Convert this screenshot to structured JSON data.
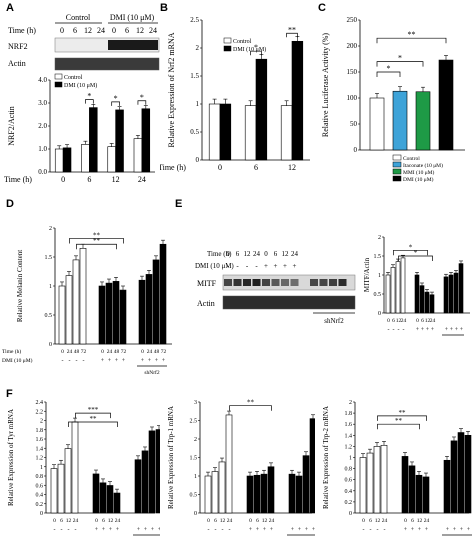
{
  "panel_labels": [
    "A",
    "B",
    "C",
    "D",
    "E",
    "F"
  ],
  "panel_a": {
    "group_labels": [
      "Control",
      "DMI (10 μM)"
    ],
    "time_label": "Time (h)",
    "times": [
      "0",
      "6",
      "12",
      "24",
      "0",
      "6",
      "12",
      "24"
    ],
    "blot_labels": [
      "NRF2",
      "Actin"
    ]
  },
  "panel_e": {
    "row_labels": [
      "Time (h)",
      "DMI (10 μM)"
    ],
    "times": [
      "0",
      "6",
      "12",
      "24",
      "0",
      "6",
      "12",
      "24"
    ],
    "dmi": [
      "-",
      "-",
      "-",
      "-",
      "+",
      "+",
      "+",
      "+"
    ],
    "blot_labels": [
      "MITF",
      "Actin"
    ],
    "shnrf2": "shNrf2"
  },
  "colors": {
    "control": "#ffffff",
    "dmi": "#000000",
    "itaconate": "#3ea3d8",
    "mmi": "#1e9a46",
    "bar_edge": "#000000"
  },
  "chart_data": [
    {
      "id": "A-quant",
      "type": "bar",
      "ylabel": "NRF2/Actin",
      "ylim": [
        0,
        4
      ],
      "yticks": [
        "0.0",
        "1.0",
        "2.0",
        "3.0",
        "4.0"
      ],
      "categories": [
        "0",
        "6",
        "12",
        "24"
      ],
      "xlabel": "Time (h)",
      "legend": [
        "Control",
        "DMI (10 μM)"
      ],
      "series": [
        {
          "name": "Control",
          "values": [
            1.0,
            1.2,
            1.1,
            1.45
          ]
        },
        {
          "name": "DMI (10 μM)",
          "values": [
            1.05,
            2.8,
            2.7,
            2.75
          ]
        }
      ],
      "annotations": [
        "*",
        "*",
        "*"
      ]
    },
    {
      "id": "B",
      "type": "bar",
      "ylabel": "Relative Expression of Nrf2 mRNA",
      "ylim": [
        0,
        2.5
      ],
      "yticks": [
        "0",
        "0.5",
        "1",
        "1.5",
        "2",
        "2.5"
      ],
      "categories": [
        "0",
        "6",
        "12"
      ],
      "xlabel": "Time (h)",
      "legend": [
        "Control",
        "DMI (10 μM)"
      ],
      "series": [
        {
          "name": "Control",
          "values": [
            1.0,
            0.97,
            0.97
          ]
        },
        {
          "name": "DMI (10 μM)",
          "values": [
            1.0,
            1.8,
            2.12
          ]
        }
      ],
      "annotations": [
        "*",
        "**"
      ]
    },
    {
      "id": "C",
      "type": "bar",
      "ylabel": "Relative Luciferase Activity (%)",
      "ylim": [
        0,
        250
      ],
      "yticks": [
        "0",
        "50",
        "100",
        "150",
        "200",
        "250"
      ],
      "categories": [
        "Control",
        "Itaconate (10 μM)",
        "MMI (10 μM)",
        "DMI (10 μM)"
      ],
      "values": [
        100,
        113,
        112,
        173
      ],
      "annotations": [
        "*",
        "*",
        "**"
      ]
    },
    {
      "id": "D",
      "type": "bar",
      "ylabel": "Relative Melanin Content",
      "ylim": [
        0,
        2
      ],
      "yticks": [
        "0",
        "0.5",
        "1",
        "1.5",
        "2"
      ],
      "time_labels": [
        "0",
        "24",
        "48",
        "72",
        "0",
        "24",
        "48",
        "72",
        "0",
        "24",
        "48",
        "72"
      ],
      "dmi": [
        "-",
        "-",
        "-",
        "-",
        "+",
        "+",
        "+",
        "+",
        "+",
        "+",
        "+",
        "+"
      ],
      "row_labels": [
        "Time (h)",
        "DMI (10 μM)"
      ],
      "shnrf2": "shNrf2",
      "values": [
        1.0,
        1.18,
        1.45,
        1.65,
        1.0,
        1.05,
        1.08,
        0.93,
        1.1,
        1.2,
        1.45,
        1.72
      ],
      "annotations": [
        "**",
        "**"
      ]
    },
    {
      "id": "E-quant",
      "type": "bar",
      "ylabel": "MITF/Actin",
      "ylim": [
        0,
        2
      ],
      "yticks": [
        "0",
        "0.5",
        "1",
        "1.5",
        "2"
      ],
      "time_labels": [
        "0",
        "6",
        "12",
        "24",
        "0",
        "6",
        "12",
        "24",
        "",
        "",
        "",
        ""
      ],
      "dmi": [
        "-",
        "-",
        "-",
        "-",
        "+",
        "+",
        "+",
        "+",
        "+",
        "+",
        "+",
        "+"
      ],
      "values": [
        1.0,
        1.2,
        1.35,
        1.45,
        1.0,
        0.72,
        0.55,
        0.48,
        0.95,
        1.0,
        1.05,
        1.3
      ],
      "annotations": [
        "*",
        "*"
      ]
    },
    {
      "id": "F1",
      "type": "bar",
      "ylabel": "Relative Expression of Tyr mRNA",
      "ylim": [
        0,
        2.5
      ],
      "yticks": [
        "0",
        "0.2",
        "0.4",
        "0.6",
        "0.8",
        "1",
        "1.2",
        "1.4",
        "1.6",
        "1.8",
        "2",
        "2.2",
        "2.4"
      ],
      "time_labels": [
        "0",
        "6",
        "12",
        "24",
        "0",
        "6",
        "12",
        "24",
        "",
        "",
        "",
        ""
      ],
      "dmi": [
        "-",
        "-",
        "-",
        "-",
        "+",
        "+",
        "+",
        "+",
        "+",
        "+",
        "+",
        "+"
      ],
      "values": [
        1.0,
        1.1,
        1.45,
        2.05,
        0.88,
        0.68,
        0.62,
        0.45,
        1.2,
        1.4,
        1.85,
        1.88
      ],
      "annotations": [
        "***",
        "**"
      ]
    },
    {
      "id": "F2",
      "type": "bar",
      "ylabel": "Relative Expression of Trp-1 mRNA",
      "ylim": [
        0,
        3
      ],
      "yticks": [
        "0",
        "0.5",
        "1",
        "1.5",
        "2",
        "2.5",
        "3"
      ],
      "time_labels": [
        "0",
        "6",
        "12",
        "24",
        "0",
        "6",
        "12",
        "24",
        "",
        "",
        "",
        ""
      ],
      "dmi": [
        "-",
        "-",
        "-",
        "-",
        "+",
        "+",
        "+",
        "+",
        "+",
        "+",
        "+",
        "+"
      ],
      "values": [
        1.0,
        1.12,
        1.38,
        2.65,
        1.0,
        1.02,
        1.05,
        1.25,
        1.05,
        1.0,
        1.55,
        2.55
      ],
      "annotations": [
        "**"
      ]
    },
    {
      "id": "F3",
      "type": "bar",
      "ylabel": "Relative Expression of Trp-2 mRNA",
      "ylim": [
        0,
        2
      ],
      "yticks": [
        "0",
        "0.2",
        "0.4",
        "0.6",
        "0.8",
        "1",
        "1.2",
        "1.4",
        "1.6",
        "1.8",
        "2"
      ],
      "time_labels": [
        "0",
        "6",
        "12",
        "24",
        "0",
        "6",
        "12",
        "24",
        "",
        "",
        "",
        ""
      ],
      "dmi": [
        "-",
        "-",
        "-",
        "-",
        "+",
        "+",
        "+",
        "+",
        "+",
        "+",
        "+",
        "+"
      ],
      "values": [
        1.0,
        1.08,
        1.2,
        1.22,
        1.02,
        0.85,
        0.68,
        0.65,
        0.95,
        1.3,
        1.45,
        1.4
      ],
      "annotations": [
        "**",
        "**"
      ]
    }
  ]
}
